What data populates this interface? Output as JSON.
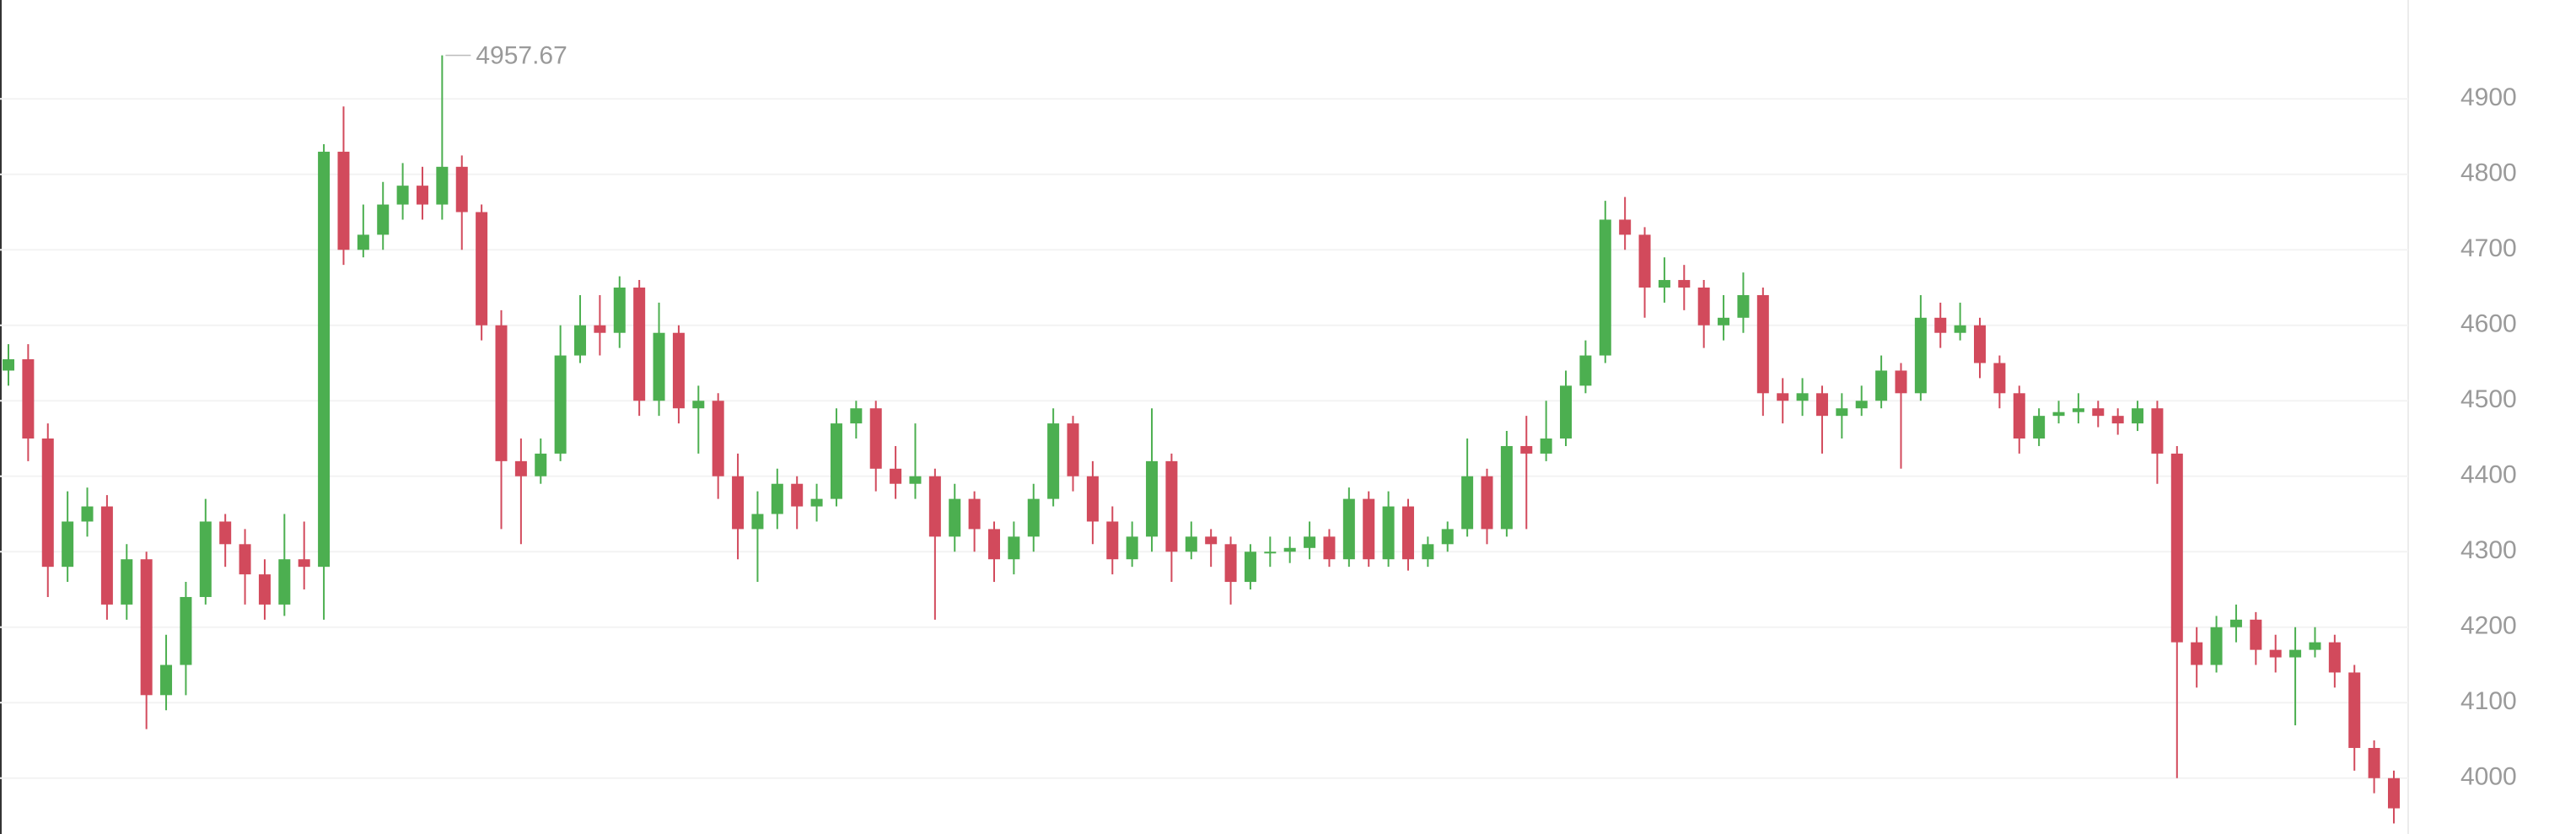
{
  "chart_data": {
    "type": "candlestick",
    "open": [
      4540,
      4555,
      4450,
      4280,
      4340,
      4360,
      4230,
      4290,
      4110,
      4150,
      4240,
      4340,
      4310,
      4270,
      4230,
      4290,
      4280,
      4830,
      4700,
      4720,
      4760,
      4785,
      4760,
      4810,
      4750,
      4600,
      4420,
      4400,
      4430,
      4560,
      4600,
      4590,
      4650,
      4500,
      4590,
      4490,
      4500,
      4400,
      4330,
      4350,
      4390,
      4360,
      4370,
      4470,
      4490,
      4410,
      4390,
      4400,
      4320,
      4370,
      4330,
      4290,
      4320,
      4370,
      4470,
      4400,
      4340,
      4290,
      4320,
      4420,
      4300,
      4320,
      4310,
      4260,
      4300,
      4300,
      4305,
      4320,
      4290,
      4370,
      4290,
      4360,
      4290,
      4310,
      4330,
      4400,
      4330,
      4440,
      4430,
      4450,
      4520,
      4560,
      4740,
      4720,
      4650,
      4660,
      4650,
      4600,
      4610,
      4640,
      4510,
      4500,
      4510,
      4480,
      4490,
      4500,
      4540,
      4510,
      4610,
      4590,
      4600,
      4550,
      4510,
      4450,
      4480,
      4485,
      4490,
      4480,
      4470,
      4490,
      4430,
      4180,
      4150,
      4200,
      4210,
      4170,
      4160,
      4170,
      4180,
      4140,
      4040,
      4000
    ],
    "high": [
      4575,
      4575,
      4470,
      4380,
      4385,
      4375,
      4310,
      4300,
      4190,
      4260,
      4370,
      4350,
      4330,
      4290,
      4350,
      4340,
      4840,
      4890,
      4760,
      4790,
      4815,
      4810,
      4957.67,
      4825,
      4760,
      4620,
      4450,
      4450,
      4600,
      4640,
      4640,
      4665,
      4660,
      4630,
      4600,
      4520,
      4510,
      4430,
      4380,
      4410,
      4400,
      4390,
      4490,
      4500,
      4500,
      4440,
      4470,
      4410,
      4390,
      4380,
      4340,
      4340,
      4390,
      4490,
      4480,
      4420,
      4360,
      4340,
      4490,
      4430,
      4340,
      4330,
      4320,
      4310,
      4320,
      4320,
      4340,
      4330,
      4385,
      4380,
      4380,
      4370,
      4320,
      4340,
      4450,
      4410,
      4460,
      4480,
      4500,
      4540,
      4580,
      4765,
      4770,
      4730,
      4690,
      4680,
      4660,
      4640,
      4670,
      4650,
      4530,
      4530,
      4520,
      4510,
      4520,
      4560,
      4550,
      4640,
      4630,
      4630,
      4610,
      4560,
      4520,
      4490,
      4500,
      4510,
      4500,
      4490,
      4500,
      4500,
      4440,
      4200,
      4215,
      4230,
      4220,
      4190,
      4200,
      4200,
      4190,
      4150,
      4050,
      4010
    ],
    "low": [
      4520,
      4420,
      4240,
      4260,
      4320,
      4210,
      4210,
      4065,
      4090,
      4110,
      4230,
      4280,
      4230,
      4210,
      4215,
      4250,
      4210,
      4680,
      4690,
      4700,
      4740,
      4740,
      4740,
      4700,
      4580,
      4330,
      4310,
      4390,
      4420,
      4550,
      4560,
      4570,
      4480,
      4480,
      4470,
      4430,
      4370,
      4290,
      4260,
      4330,
      4330,
      4340,
      4360,
      4450,
      4380,
      4370,
      4370,
      4210,
      4300,
      4300,
      4260,
      4270,
      4300,
      4360,
      4380,
      4310,
      4270,
      4280,
      4300,
      4260,
      4290,
      4280,
      4230,
      4250,
      4280,
      4285,
      4290,
      4280,
      4280,
      4280,
      4280,
      4275,
      4280,
      4300,
      4320,
      4310,
      4320,
      4330,
      4420,
      4440,
      4510,
      4550,
      4700,
      4610,
      4630,
      4620,
      4570,
      4580,
      4590,
      4480,
      4470,
      4480,
      4430,
      4450,
      4480,
      4490,
      4410,
      4500,
      4570,
      4580,
      4530,
      4490,
      4430,
      4440,
      4470,
      4470,
      4465,
      4455,
      4460,
      4390,
      4000,
      4120,
      4140,
      4180,
      4150,
      4140,
      4070,
      4160,
      4120,
      4010,
      3980,
      3940
    ],
    "close": [
      4555,
      4450,
      4280,
      4340,
      4360,
      4230,
      4290,
      4110,
      4150,
      4240,
      4340,
      4310,
      4270,
      4230,
      4290,
      4280,
      4830,
      4700,
      4720,
      4760,
      4785,
      4760,
      4810,
      4750,
      4600,
      4420,
      4400,
      4430,
      4560,
      4600,
      4590,
      4650,
      4500,
      4590,
      4490,
      4500,
      4400,
      4330,
      4350,
      4390,
      4360,
      4370,
      4470,
      4490,
      4410,
      4390,
      4400,
      4320,
      4370,
      4330,
      4290,
      4320,
      4370,
      4470,
      4400,
      4340,
      4290,
      4320,
      4420,
      4300,
      4320,
      4310,
      4260,
      4300,
      4300,
      4305,
      4320,
      4290,
      4370,
      4290,
      4360,
      4290,
      4310,
      4330,
      4400,
      4330,
      4440,
      4430,
      4450,
      4520,
      4560,
      4740,
      4720,
      4650,
      4660,
      4650,
      4600,
      4610,
      4640,
      4510,
      4500,
      4510,
      4480,
      4490,
      4500,
      4540,
      4510,
      4610,
      4590,
      4600,
      4550,
      4510,
      4450,
      4480,
      4485,
      4490,
      4480,
      4470,
      4490,
      4430,
      4180,
      4150,
      4200,
      4210,
      4170,
      4160,
      4170,
      4180,
      4140,
      4040,
      4000,
      3960
    ],
    "up_color": "#4caf50",
    "down_color": "#d24a5c",
    "ylim": [
      3926,
      5031
    ],
    "yticks": [
      4000,
      4100,
      4200,
      4300,
      4400,
      4500,
      4600,
      4700,
      4800,
      4900
    ],
    "grid": true
  }
}
